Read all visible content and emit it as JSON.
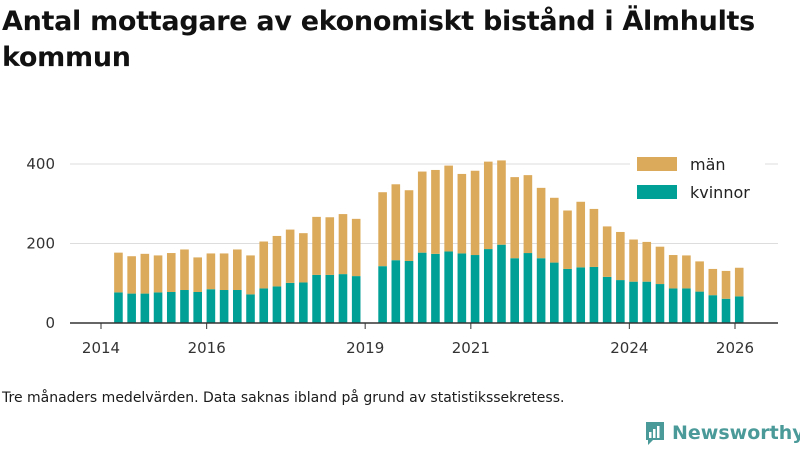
{
  "chart_data": {
    "type": "bar",
    "stacked": true,
    "title": "Antal mottagare av ekonomiskt bistånd i Älmhults kommun",
    "note": "Tre månaders medelvärden. Data saknas ibland på grund av statistikssekretess.",
    "xlabel": "",
    "ylabel": "",
    "ylim": [
      0,
      420
    ],
    "yticks": [
      0,
      200,
      400
    ],
    "xticks": [
      2014,
      2016,
      2019,
      2021,
      2024,
      2026
    ],
    "xlim": [
      2013.75,
      2026.75
    ],
    "legend": {
      "position": "top-right",
      "entries": [
        "män",
        "kvinnor"
      ]
    },
    "colors": {
      "män": "#dcaa5b",
      "kvinnor": "#00a096"
    },
    "x": [
      2014.33,
      2014.58,
      2014.83,
      2015.08,
      2015.33,
      2015.58,
      2015.83,
      2016.08,
      2016.33,
      2016.58,
      2016.83,
      2017.08,
      2017.33,
      2017.58,
      2017.83,
      2018.08,
      2018.33,
      2018.58,
      2018.83,
      2019.33,
      2019.58,
      2019.83,
      2020.08,
      2020.33,
      2020.58,
      2020.83,
      2021.08,
      2021.33,
      2021.58,
      2021.83,
      2022.08,
      2022.33,
      2022.58,
      2022.83,
      2023.08,
      2023.33,
      2023.58,
      2023.83,
      2024.08,
      2024.33,
      2024.58,
      2024.83,
      2025.08,
      2025.33,
      2025.58,
      2025.83,
      2026.08
    ],
    "series": [
      {
        "name": "kvinnor",
        "values": [
          77,
          74,
          74,
          77,
          78,
          83,
          78,
          85,
          83,
          83,
          72,
          87,
          92,
          101,
          102,
          121,
          121,
          123,
          118,
          143,
          158,
          156,
          177,
          174,
          180,
          175,
          171,
          186,
          197,
          163,
          176,
          163,
          152,
          136,
          140,
          141,
          116,
          108,
          104,
          104,
          98,
          87,
          87,
          79,
          70,
          61,
          67
        ]
      },
      {
        "name": "män",
        "values": [
          100,
          94,
          100,
          93,
          98,
          102,
          87,
          90,
          92,
          102,
          98,
          118,
          127,
          134,
          124,
          146,
          145,
          151,
          144,
          186,
          191,
          178,
          204,
          211,
          216,
          200,
          212,
          220,
          212,
          204,
          196,
          177,
          163,
          147,
          165,
          146,
          127,
          121,
          106,
          100,
          94,
          84,
          83,
          76,
          66,
          70,
          72
        ]
      }
    ]
  },
  "branding": {
    "name": "Newsworthy",
    "color": "#4a9a99"
  },
  "style": {
    "grid_color": "#dddddd",
    "axis_color": "#333333"
  }
}
